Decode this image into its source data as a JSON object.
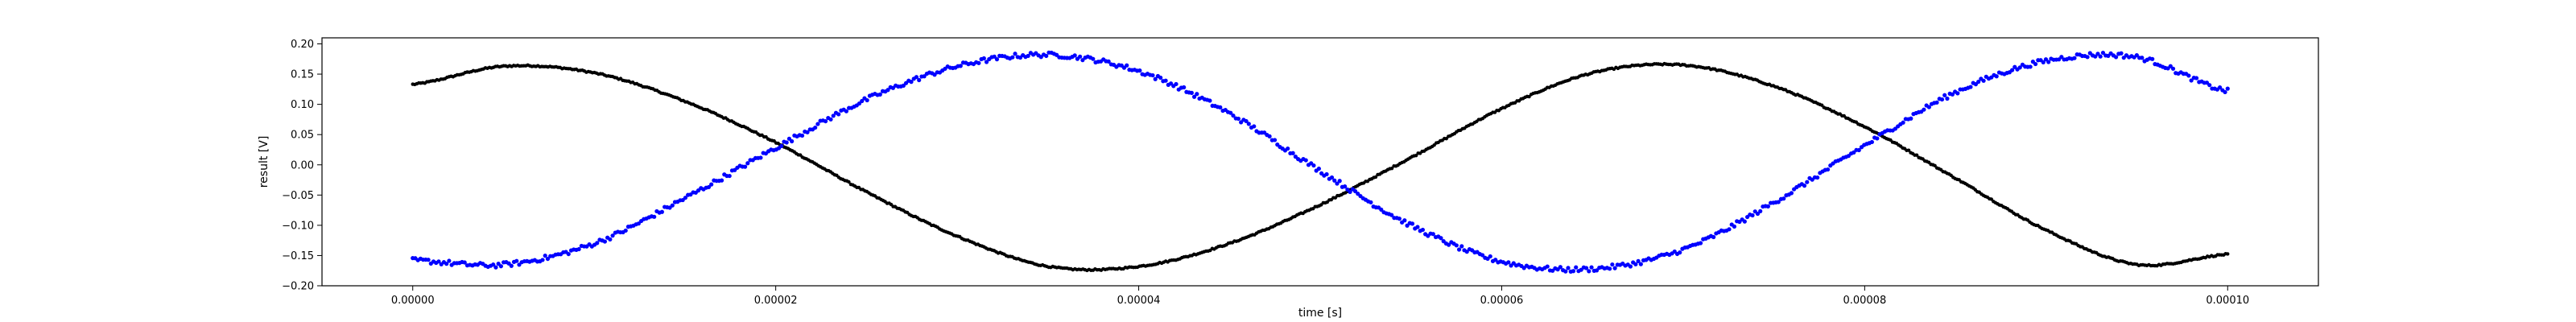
{
  "chart_data": {
    "type": "scatter",
    "title": "",
    "xlabel": "time [s]",
    "ylabel": "result [V]",
    "xlim": [
      -5e-06,
      0.000105
    ],
    "ylim": [
      -0.2,
      0.21
    ],
    "grid": false,
    "x_ticks": [
      {
        "value": 0.0,
        "label": "0.00000"
      },
      {
        "value": 2e-05,
        "label": "0.00002"
      },
      {
        "value": 4e-05,
        "label": "0.00004"
      },
      {
        "value": 6e-05,
        "label": "0.00006"
      },
      {
        "value": 8e-05,
        "label": "0.00008"
      },
      {
        "value": 0.0001,
        "label": "0.00010"
      }
    ],
    "y_ticks": [
      {
        "value": -0.2,
        "label": "−0.20"
      },
      {
        "value": -0.15,
        "label": "−0.15"
      },
      {
        "value": -0.1,
        "label": "−0.10"
      },
      {
        "value": -0.05,
        "label": "−0.05"
      },
      {
        "value": 0.0,
        "label": "0.00"
      },
      {
        "value": 0.05,
        "label": "0.05"
      },
      {
        "value": 0.1,
        "label": "0.10"
      },
      {
        "value": 0.15,
        "label": "0.15"
      },
      {
        "value": 0.2,
        "label": "0.20"
      }
    ],
    "series": [
      {
        "color": "#000000",
        "marker_size": 2.2,
        "x": [
          0.0,
          5e-06,
          1e-05,
          1.5e-05,
          2e-05,
          2.5e-05,
          3e-05,
          3.5e-05,
          4e-05,
          4.5e-05,
          5e-05,
          5.5e-05,
          6e-05,
          6.5e-05,
          7e-05,
          7.5e-05,
          8e-05,
          8.5e-05,
          9e-05,
          9.5e-05,
          0.0001
        ],
        "y": [
          0.133,
          0.163,
          0.152,
          0.105,
          0.037,
          -0.045,
          -0.118,
          -0.168,
          -0.168,
          -0.13,
          -0.066,
          0.012,
          0.093,
          0.152,
          0.165,
          0.13,
          0.063,
          -0.022,
          -0.108,
          -0.165,
          -0.148
        ]
      },
      {
        "color": "#0000ff",
        "marker_size": 2.6,
        "x": [
          0.0,
          5e-06,
          1e-05,
          1.5e-05,
          2e-05,
          2.5e-05,
          3e-05,
          3.5e-05,
          4e-05,
          4.5e-05,
          5e-05,
          5.5e-05,
          6e-05,
          6.5e-05,
          7e-05,
          7.5e-05,
          8e-05,
          8.5e-05,
          9e-05,
          9.5e-05,
          0.0001
        ],
        "y": [
          -0.158,
          -0.165,
          -0.13,
          -0.055,
          0.028,
          0.108,
          0.163,
          0.182,
          0.155,
          0.085,
          -0.01,
          -0.1,
          -0.16,
          -0.172,
          -0.14,
          -0.062,
          0.032,
          0.12,
          0.172,
          0.178,
          0.122
        ]
      }
    ]
  }
}
